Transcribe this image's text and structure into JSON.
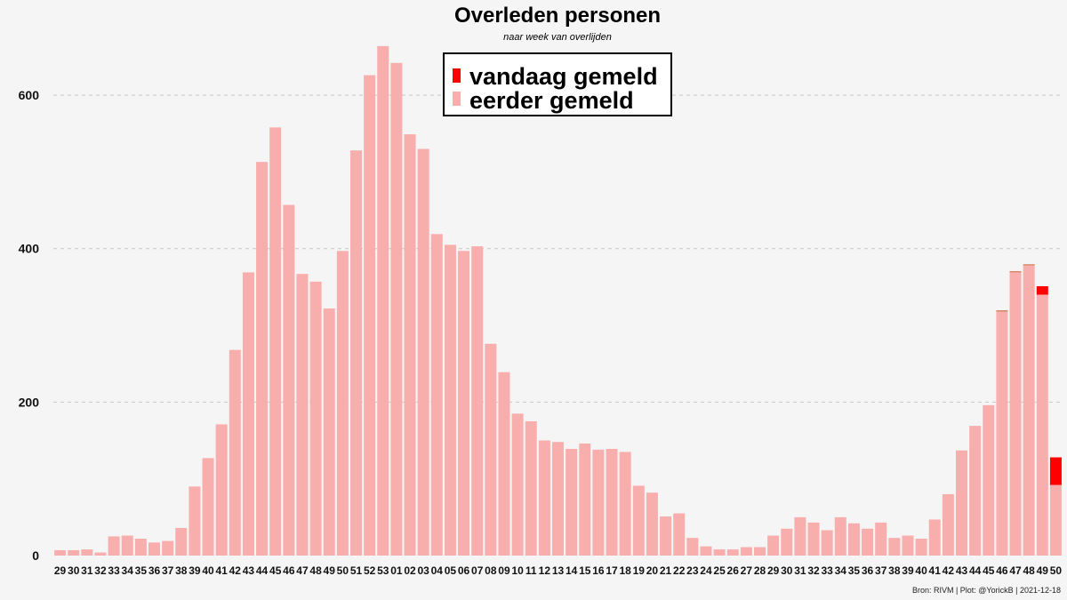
{
  "chart_data": {
    "type": "bar",
    "stacked": true,
    "title": "Overleden personen",
    "subtitle": "naar week van overlijden",
    "xlabel": "",
    "ylabel": "",
    "ylim": [
      0,
      680
    ],
    "yticks": [
      0,
      200,
      400,
      600
    ],
    "grid": true,
    "legend_position": "top-center",
    "categories": [
      "29",
      "30",
      "31",
      "32",
      "33",
      "34",
      "35",
      "36",
      "37",
      "38",
      "39",
      "40",
      "41",
      "42",
      "43",
      "44",
      "45",
      "46",
      "47",
      "48",
      "49",
      "50",
      "51",
      "52",
      "53",
      "01",
      "02",
      "03",
      "04",
      "05",
      "06",
      "07",
      "08",
      "09",
      "10",
      "11",
      "12",
      "13",
      "14",
      "15",
      "16",
      "17",
      "18",
      "19",
      "20",
      "21",
      "22",
      "23",
      "24",
      "25",
      "26",
      "27",
      "28",
      "29",
      "30",
      "31",
      "32",
      "33",
      "34",
      "35",
      "36",
      "37",
      "38",
      "39",
      "40",
      "41",
      "42",
      "43",
      "44",
      "45",
      "46",
      "47",
      "48",
      "49",
      "50"
    ],
    "series": [
      {
        "name": "eerder gemeld",
        "color": "#f9aeae",
        "values": [
          7,
          7,
          8,
          4,
          25,
          26,
          22,
          17,
          19,
          36,
          90,
          127,
          171,
          268,
          369,
          513,
          558,
          457,
          367,
          357,
          322,
          397,
          528,
          626,
          664,
          642,
          549,
          530,
          419,
          405,
          397,
          403,
          276,
          239,
          185,
          175,
          150,
          148,
          139,
          146,
          138,
          139,
          135,
          91,
          82,
          51,
          55,
          23,
          12,
          8,
          8,
          11,
          11,
          26,
          35,
          50,
          43,
          33,
          50,
          42,
          35,
          43,
          23,
          26,
          22,
          47,
          80,
          137,
          169,
          196,
          318,
          369,
          378,
          340,
          92
        ]
      },
      {
        "name": "vandaag gemeld",
        "color": "#ff0000",
        "values": [
          0,
          0,
          0,
          0,
          0,
          0,
          0,
          0,
          0,
          0,
          0,
          0,
          0,
          0,
          0,
          0,
          0,
          0,
          0,
          0,
          0,
          0,
          0,
          0,
          0,
          0,
          0,
          0,
          0,
          0,
          0,
          0,
          0,
          0,
          0,
          0,
          0,
          0,
          0,
          0,
          0,
          0,
          0,
          0,
          0,
          0,
          0,
          0,
          0,
          0,
          0,
          0,
          0,
          0,
          0,
          0,
          0,
          0,
          0,
          0,
          0,
          0,
          0,
          0,
          0,
          0,
          0,
          0,
          0,
          0,
          1,
          1,
          1,
          11,
          36
        ]
      }
    ]
  },
  "legend": {
    "items": [
      {
        "label": "vandaag gemeld",
        "color": "#ff0000"
      },
      {
        "label": "eerder gemeld",
        "color": "#f9aeae"
      }
    ]
  },
  "caption": "Bron: RIVM | Plot: @YorickB |  2021-12-18"
}
